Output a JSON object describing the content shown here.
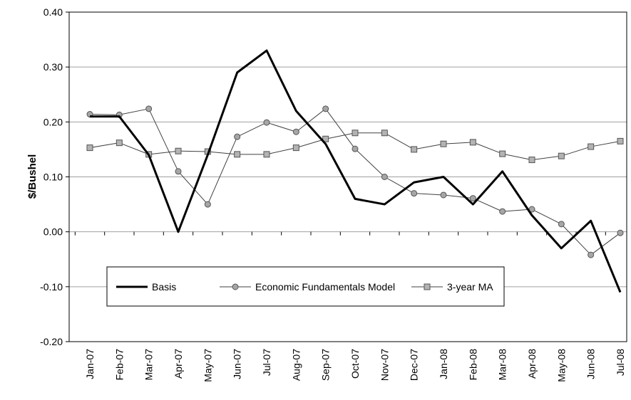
{
  "chart_data": {
    "type": "line",
    "y_label": "$/Bushel",
    "categories": [
      "Jan-07",
      "Feb-07",
      "Mar-07",
      "Apr-07",
      "May-07",
      "Jun-07",
      "Jul-07",
      "Aug-07",
      "Sep-07",
      "Oct-07",
      "Nov-07",
      "Dec-07",
      "Jan-08",
      "Feb-08",
      "Mar-08",
      "Apr-08",
      "May-08",
      "Jun-08",
      "Jul-08"
    ],
    "series": [
      {
        "name": "Basis",
        "color": "#000000",
        "marker": "none",
        "line_width": 3,
        "values": [
          0.21,
          0.21,
          0.14,
          0.0,
          0.14,
          0.29,
          0.33,
          0.22,
          0.16,
          0.06,
          0.05,
          0.09,
          0.1,
          0.05,
          0.11,
          0.03,
          -0.03,
          0.02,
          -0.11
        ]
      },
      {
        "name": "Economic Fundamentals Model",
        "color": "#404040",
        "marker": "circle",
        "marker_color": "#a6a6a6",
        "line_width": 1,
        "values": [
          0.214,
          0.213,
          0.224,
          0.11,
          0.05,
          0.173,
          0.199,
          0.182,
          0.224,
          0.151,
          0.1,
          0.07,
          0.067,
          0.061,
          0.037,
          0.041,
          0.014,
          -0.042,
          -0.002
        ]
      },
      {
        "name": "3-year MA",
        "color": "#404040",
        "marker": "square",
        "marker_color": "#b3b3b3",
        "line_width": 1,
        "values": [
          0.153,
          0.162,
          0.141,
          0.147,
          0.146,
          0.141,
          0.141,
          0.153,
          0.169,
          0.18,
          0.18,
          0.15,
          0.16,
          0.163,
          0.142,
          0.131,
          0.138,
          0.155,
          0.165
        ]
      }
    ],
    "ylim": [
      -0.2,
      0.4
    ],
    "yticks": [
      {
        "value": -0.2,
        "label": "-0.20"
      },
      {
        "value": -0.1,
        "label": "-0.10"
      },
      {
        "value": 0,
        "label": "0.00"
      },
      {
        "value": 0.1,
        "label": "0.10"
      },
      {
        "value": 0.2,
        "label": "0.20"
      },
      {
        "value": 0.3,
        "label": "0.30"
      },
      {
        "value": 0.4,
        "label": "0.40"
      }
    ],
    "grid": true
  }
}
